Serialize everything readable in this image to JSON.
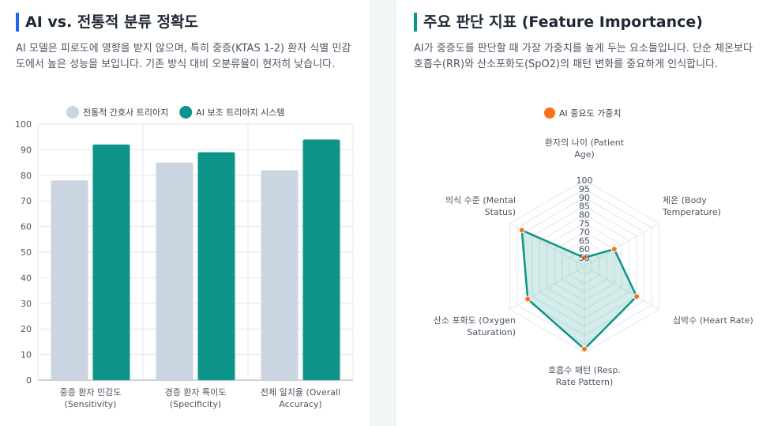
{
  "left": {
    "title": "AI vs. 전통적 분류 정확도",
    "description": "AI 모델은 피로도에 영향을 받지 않으며, 특히 중증(KTAS 1-2) 환자 식별 민감도에서 높은 성능을 보입니다. 기존 방식 대비 오분류율이 현저히 낮습니다."
  },
  "right": {
    "title": "주요 판단 지표 (Feature Importance)",
    "description": "AI가 중증도를 판단할 때 가장 가중치를 높게 두는 요소들입니다. 단순 체온보다 호흡수(RR)와 산소포화도(SpO2)의 패턴 변화를 중요하게 인식합니다."
  },
  "chart_data": [
    {
      "type": "bar",
      "categories": [
        [
          "중증 환자 민감도",
          "(Sensitivity)"
        ],
        [
          "경증 환자 특이도",
          "(Specificity)"
        ],
        [
          "전체 일치율 (Overall",
          "Accuracy)"
        ]
      ],
      "series": [
        {
          "name": "전통적 간호사 트리아지",
          "values": [
            78,
            85,
            82
          ],
          "color": "#cbd5e1"
        },
        {
          "name": "AI 보조 트리아지 시스템",
          "values": [
            92,
            89,
            94
          ],
          "color": "#0d9488"
        }
      ],
      "ylim": [
        0,
        100
      ],
      "yticks": [
        0,
        10,
        20,
        30,
        40,
        50,
        60,
        70,
        80,
        90,
        100
      ],
      "grid": true,
      "legend": "top"
    },
    {
      "type": "radar",
      "axes": [
        [
          "환자의 나이 (Patient",
          "Age)"
        ],
        [
          "체온 (Body",
          "Temperature)"
        ],
        [
          "심박수 (Heart Rate)"
        ],
        [
          "호흡수 패턴 (Resp.",
          "Rate Pattern)"
        ],
        [
          "산소 포화도 (Oxygen",
          "Saturation)"
        ],
        [
          "의식 수준 (Mental",
          "Status)"
        ]
      ],
      "series": [
        {
          "name": "AI 중요도 가중치",
          "values": [
            55,
            70,
            85,
            98,
            88,
            92
          ],
          "color": "#0d9488",
          "point_color": "#f97316"
        }
      ],
      "rlim": [
        50,
        100
      ],
      "rticks": [
        55,
        60,
        65,
        70,
        75,
        80,
        85,
        90,
        95,
        100
      ],
      "legend": "top"
    }
  ]
}
